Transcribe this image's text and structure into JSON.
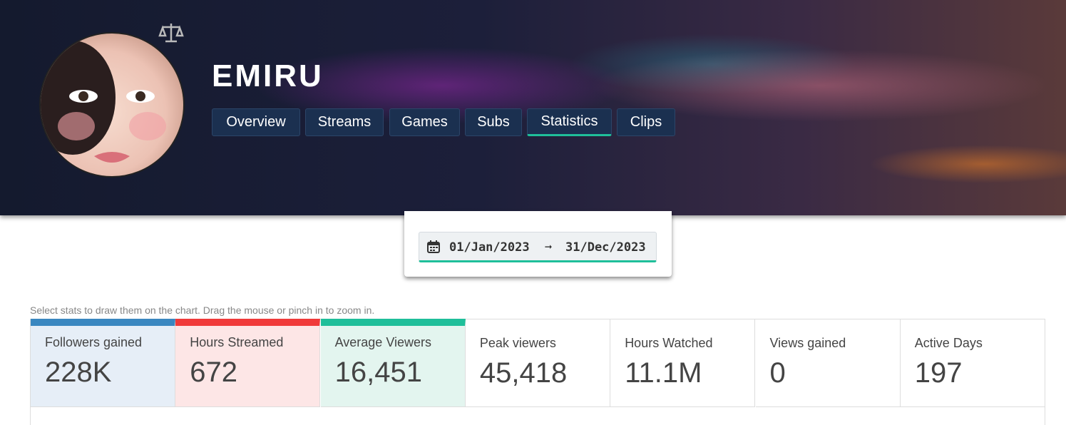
{
  "header": {
    "title": "EMIRU",
    "tabs": [
      "Overview",
      "Streams",
      "Games",
      "Subs",
      "Statistics",
      "Clips"
    ]
  },
  "date_range": {
    "start": "01/Jan/2023",
    "arrow": "➞",
    "end": "31/Dec/2023"
  },
  "hint": "Select stats to draw them on the chart. Drag the mouse or pinch in to zoom in.",
  "stats": [
    {
      "label": "Followers gained",
      "value": "228K"
    },
    {
      "label": "Hours Streamed",
      "value": "672"
    },
    {
      "label": "Average Viewers",
      "value": "16,451"
    },
    {
      "label": "Peak viewers",
      "value": "45,418"
    },
    {
      "label": "Hours Watched",
      "value": "11.1M"
    },
    {
      "label": "Views gained",
      "value": "0"
    },
    {
      "label": "Active Days",
      "value": "197"
    }
  ]
}
